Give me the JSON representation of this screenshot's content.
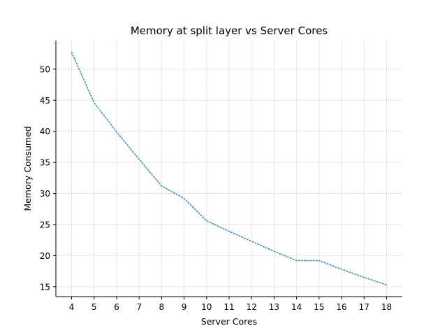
{
  "chart_data": {
    "type": "line",
    "title": "Memory at split layer vs Server Cores",
    "xlabel": "Server Cores",
    "ylabel": "Memory Consumed",
    "x": [
      4,
      5,
      6,
      7,
      8,
      9,
      10,
      11,
      12,
      13,
      14,
      15,
      16,
      17,
      18
    ],
    "series": [
      {
        "values": [
          52.7,
          44.6,
          39.9,
          35.5,
          31.2,
          29.2,
          25.6,
          23.9,
          22.3,
          20.7,
          19.2,
          19.2,
          17.8,
          16.5,
          15.3
        ],
        "color": "#3b8bc4",
        "line_style": "dotted"
      }
    ],
    "xticks": [
      "4",
      "5",
      "6",
      "7",
      "8",
      "9",
      "10",
      "11",
      "12",
      "13",
      "14",
      "15",
      "16",
      "17",
      "18"
    ],
    "yticks": [
      "15",
      "20",
      "25",
      "30",
      "35",
      "40",
      "45",
      "50"
    ],
    "xlim": [
      3.3,
      18.7
    ],
    "ylim": [
      13.4,
      54.6
    ],
    "grid": true,
    "spines": "left-bottom"
  }
}
